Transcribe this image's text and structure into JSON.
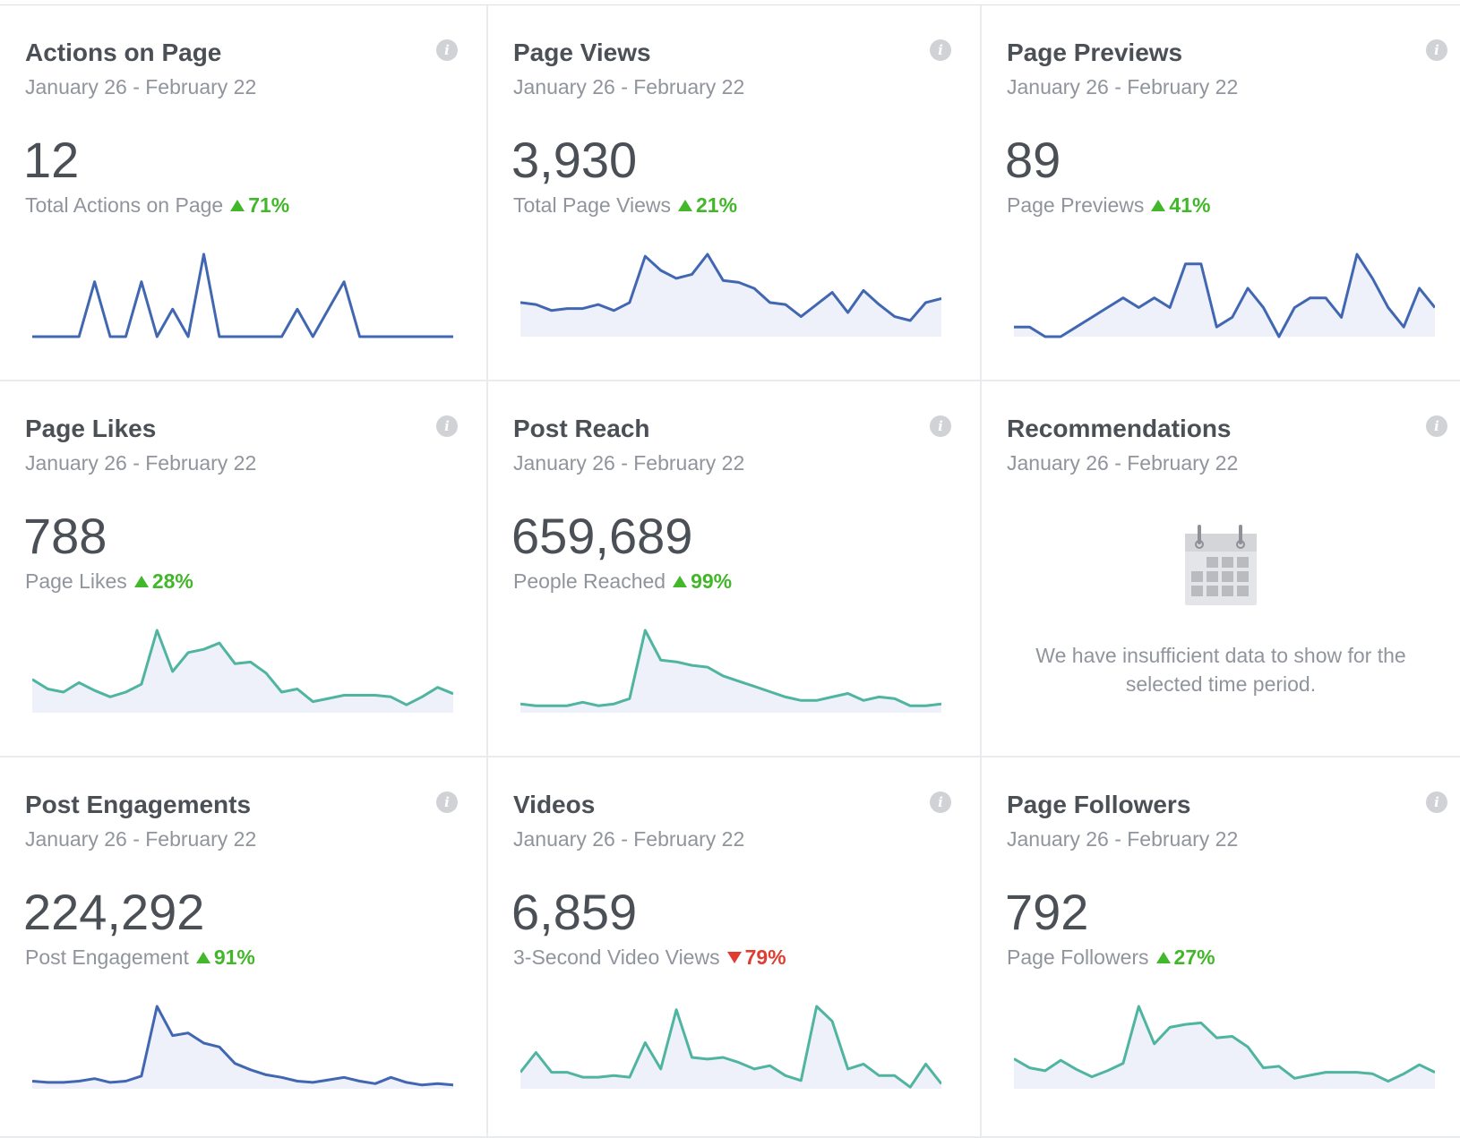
{
  "cards": [
    {
      "title": "Actions on Page",
      "date_range": "January 26 - February 22",
      "info_label": "i",
      "value": "12",
      "metric_label": "Total Actions on Page",
      "change": "71%",
      "trend": "up",
      "spark": {
        "color": "#4267b2",
        "fill": false,
        "values": [
          0,
          0,
          0,
          0,
          2,
          0,
          0,
          2,
          0,
          1,
          0,
          3,
          0,
          0,
          0,
          0,
          0,
          1,
          0,
          1,
          2,
          0,
          0,
          0,
          0,
          0,
          0,
          0
        ]
      }
    },
    {
      "title": "Page Views",
      "date_range": "January 26 - February 22",
      "info_label": "i",
      "value": "3,930",
      "metric_label": "Total Page Views",
      "change": "21%",
      "trend": "up",
      "spark": {
        "color": "#4267b2",
        "fill": true,
        "values": [
          17,
          16,
          13,
          14,
          14,
          16,
          13,
          17,
          40,
          33,
          29,
          31,
          41,
          28,
          27,
          24,
          17,
          16,
          10,
          16,
          22,
          12,
          23,
          16,
          10,
          8,
          17,
          19
        ]
      }
    },
    {
      "title": "Page Previews",
      "date_range": "January 26 - February 22",
      "info_label": "i",
      "value": "89",
      "metric_label": "Page Previews",
      "change": "41%",
      "trend": "up",
      "spark": {
        "color": "#4267b2",
        "fill": true,
        "values": [
          2,
          2,
          0,
          0,
          2,
          4,
          6,
          8,
          6,
          8,
          6,
          15,
          15,
          2,
          4,
          10,
          6,
          0,
          6,
          8,
          8,
          4,
          17,
          12,
          6,
          2,
          10,
          6
        ]
      }
    },
    {
      "title": "Page Likes",
      "date_range": "January 26 - February 22",
      "info_label": "i",
      "value": "788",
      "metric_label": "Page Likes",
      "change": "28%",
      "trend": "up",
      "spark": {
        "color": "#4fb4a0",
        "fill": true,
        "values": [
          21,
          15,
          13,
          19,
          14,
          10,
          13,
          18,
          52,
          26,
          38,
          40,
          44,
          31,
          32,
          25,
          13,
          15,
          7,
          9,
          11,
          11,
          11,
          10,
          5,
          10,
          16,
          12
        ]
      }
    },
    {
      "title": "Post Reach",
      "date_range": "January 26 - February 22",
      "info_label": "i",
      "value": "659,689",
      "metric_label": "People Reached",
      "change": "99%",
      "trend": "up",
      "spark": {
        "color": "#4fb4a0",
        "fill": true,
        "values": [
          5,
          4,
          4,
          4,
          6,
          4,
          5,
          8,
          47,
          30,
          29,
          27,
          26,
          21,
          18,
          15,
          12,
          9,
          7,
          7,
          9,
          11,
          7,
          9,
          8,
          4,
          4,
          5
        ]
      }
    },
    {
      "title": "Recommendations",
      "date_range": "January 26 - February 22",
      "info_label": "i",
      "empty_message": "We have insufficient data to show for the selected time period."
    },
    {
      "title": "Post Engagements",
      "date_range": "January 26 - February 22",
      "info_label": "i",
      "value": "224,292",
      "metric_label": "Post Engagement",
      "change": "91%",
      "trend": "up",
      "spark": {
        "color": "#4267b2",
        "fill": true,
        "values": [
          6,
          5,
          5,
          6,
          8,
          5,
          6,
          10,
          65,
          42,
          44,
          36,
          33,
          20,
          15,
          11,
          9,
          6,
          5,
          7,
          9,
          6,
          4,
          9,
          5,
          3,
          4,
          3
        ]
      }
    },
    {
      "title": "Videos",
      "date_range": "January 26 - February 22",
      "info_label": "i",
      "value": "6,859",
      "metric_label": "3-Second Video Views",
      "change": "79%",
      "trend": "down",
      "spark": {
        "color": "#4fb4a0",
        "fill": true,
        "values": [
          10,
          22,
          10,
          10,
          7,
          7,
          8,
          7,
          28,
          12,
          48,
          19,
          18,
          19,
          16,
          12,
          14,
          8,
          5,
          50,
          41,
          12,
          15,
          8,
          8,
          1,
          15,
          3
        ]
      }
    },
    {
      "title": "Page Followers",
      "date_range": "January 26 - February 22",
      "info_label": "i",
      "value": "792",
      "metric_label": "Page Followers",
      "change": "27%",
      "trend": "up",
      "spark": {
        "color": "#4fb4a0",
        "fill": true,
        "values": [
          20,
          14,
          12,
          19,
          13,
          8,
          12,
          17,
          55,
          30,
          41,
          43,
          44,
          34,
          35,
          28,
          14,
          15,
          7,
          9,
          11,
          11,
          11,
          10,
          5,
          10,
          16,
          11
        ]
      }
    }
  ]
}
